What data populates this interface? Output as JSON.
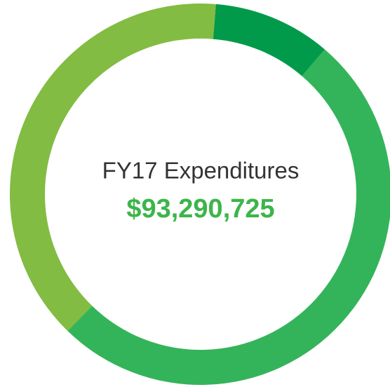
{
  "chart_data": {
    "type": "donut",
    "center_text": "FY17 Expenditures",
    "center_value": "$93,290,725",
    "values": [
      10,
      51,
      39
    ],
    "colors": [
      "#009a4a",
      "#34b45a",
      "#82bc42"
    ]
  }
}
